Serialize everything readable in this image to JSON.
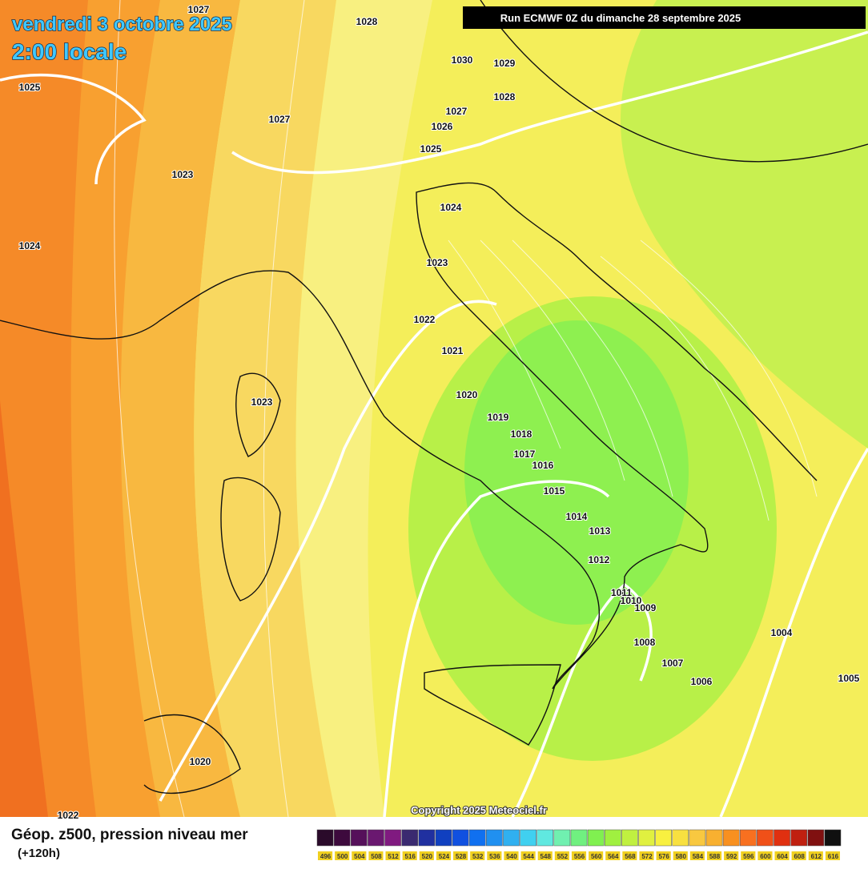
{
  "header": {
    "date": "vendredi 3 octobre 2025",
    "time": "2:00 locale",
    "run": "Run ECMWF 0Z du dimanche 28 septembre 2025"
  },
  "isobar_labels": [
    1027,
    1028,
    1030,
    1029,
    1025,
    1028,
    1027,
    1027,
    1026,
    1025,
    1023,
    1024,
    1024,
    1023,
    1022,
    1021,
    1020,
    1023,
    1019,
    1018,
    1017,
    1016,
    1015,
    1014,
    1013,
    1012,
    1011,
    1010,
    1009,
    1008,
    1007,
    1004,
    1006,
    1005,
    1020,
    1022
  ],
  "copyright": "Copyright 2025 Meteociel.fr",
  "footer": {
    "title": "Géop. z500, pression niveau mer",
    "lead": "(+120h)"
  },
  "legend": {
    "labels": [
      496,
      500,
      504,
      508,
      512,
      516,
      520,
      524,
      528,
      532,
      536,
      540,
      544,
      548,
      552,
      556,
      560,
      564,
      568,
      572,
      576,
      580,
      584,
      588,
      592,
      596,
      600,
      604,
      608,
      612,
      616
    ],
    "colors": [
      "#2a0a2a",
      "#3d0a3d",
      "#55105a",
      "#6a1870",
      "#801a80",
      "#3a2a70",
      "#2030a0",
      "#1040c0",
      "#1050e0",
      "#1070f0",
      "#2090f0",
      "#30b0f0",
      "#40d0f0",
      "#60e8e0",
      "#70f0b0",
      "#70f080",
      "#80f050",
      "#a0f040",
      "#c0f040",
      "#e0f040",
      "#f8f040",
      "#f8e040",
      "#f8c840",
      "#f8b030",
      "#f89020",
      "#f87020",
      "#f05018",
      "#e03010",
      "#c02010",
      "#801010",
      "#101010"
    ]
  }
}
